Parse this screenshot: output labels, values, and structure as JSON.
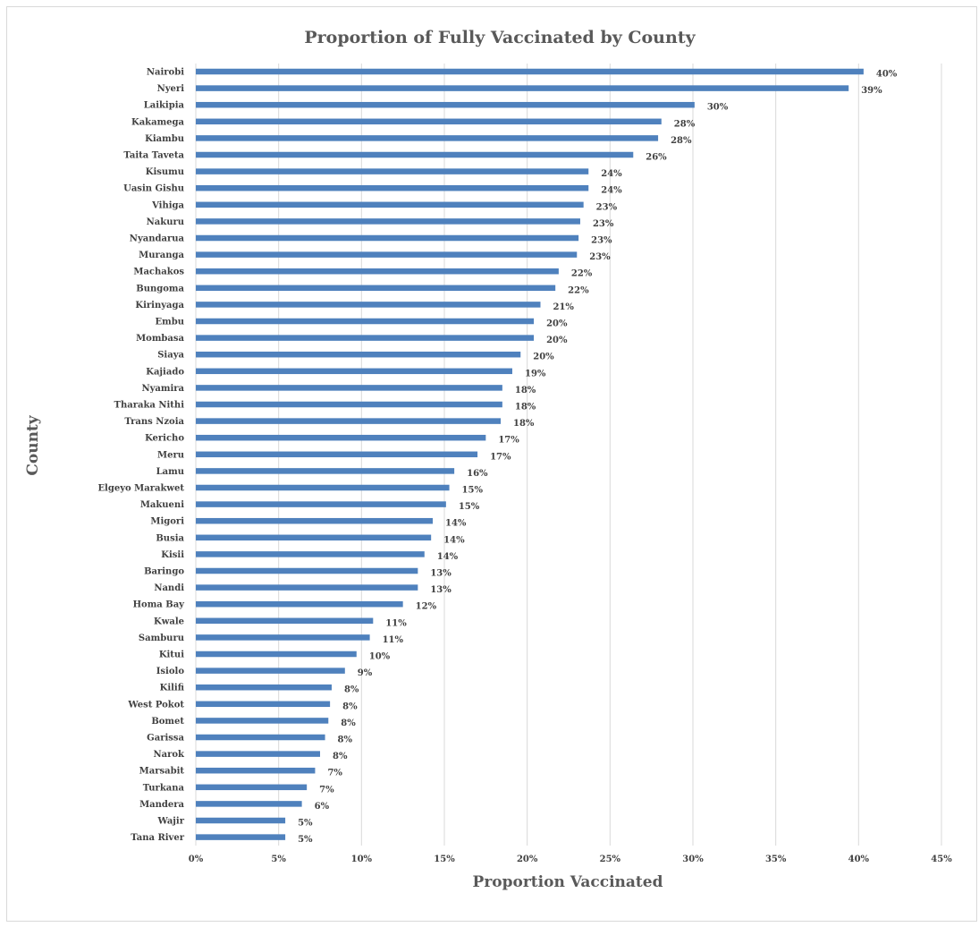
{
  "chart_data": {
    "type": "bar",
    "orientation": "horizontal",
    "title": "Proportion of Fully  Vaccinated by County",
    "xlabel": "Proportion Vaccinated",
    "ylabel": "County",
    "xlim": [
      0,
      45
    ],
    "x_ticks": [
      0,
      5,
      10,
      15,
      20,
      25,
      30,
      35,
      40,
      45
    ],
    "x_tick_labels": [
      "0%",
      "5%",
      "10%",
      "15%",
      "20%",
      "25%",
      "30%",
      "35%",
      "40%",
      "45%"
    ],
    "grid": "vertical",
    "legend": "none",
    "bar_color": "#4f81bd",
    "categories": [
      "Nairobi",
      "Nyeri",
      "Laikipia",
      "Kakamega",
      "Kiambu",
      "Taita Taveta",
      "Kisumu",
      "Uasin Gishu",
      "Vihiga",
      "Nakuru",
      "Nyandarua",
      "Muranga",
      "Machakos",
      "Bungoma",
      "Kirinyaga",
      "Embu",
      "Mombasa",
      "Siaya",
      "Kajiado",
      "Nyamira",
      "Tharaka Nithi",
      "Trans Nzoia",
      "Kericho",
      "Meru",
      "Lamu",
      "Elgeyo Marakwet",
      "Makueni",
      "Migori",
      "Busia",
      "Kisii",
      "Baringo",
      "Nandi",
      "Homa Bay",
      "Kwale",
      "Samburu",
      "Kitui",
      "Isiolo",
      "Kilifi",
      "West Pokot",
      "Bomet",
      "Garissa",
      "Narok",
      "Marsabit",
      "Turkana",
      "Mandera",
      "Wajir",
      "Tana River"
    ],
    "values": [
      40.3,
      39.4,
      30.1,
      28.1,
      27.9,
      26.4,
      23.7,
      23.7,
      23.4,
      23.2,
      23.1,
      23.0,
      21.9,
      21.7,
      20.8,
      20.4,
      20.4,
      19.6,
      19.1,
      18.5,
      18.5,
      18.4,
      17.5,
      17.0,
      15.6,
      15.3,
      15.1,
      14.3,
      14.2,
      13.8,
      13.4,
      13.4,
      12.5,
      10.7,
      10.5,
      9.7,
      9.0,
      8.2,
      8.1,
      8.0,
      7.8,
      7.5,
      7.2,
      6.7,
      6.4,
      5.4,
      5.4
    ],
    "data_labels": [
      "40%",
      "39%",
      "30%",
      "28%",
      "28%",
      "26%",
      "24%",
      "24%",
      "23%",
      "23%",
      "23%",
      "23%",
      "22%",
      "22%",
      "21%",
      "20%",
      "20%",
      "20%",
      "19%",
      "18%",
      "18%",
      "18%",
      "17%",
      "17%",
      "16%",
      "15%",
      "15%",
      "14%",
      "14%",
      "14%",
      "13%",
      "13%",
      "12%",
      "11%",
      "11%",
      "10%",
      "9%",
      "8%",
      "8%",
      "8%",
      "8%",
      "8%",
      "7%",
      "7%",
      "6%",
      "5%",
      "5%"
    ]
  }
}
